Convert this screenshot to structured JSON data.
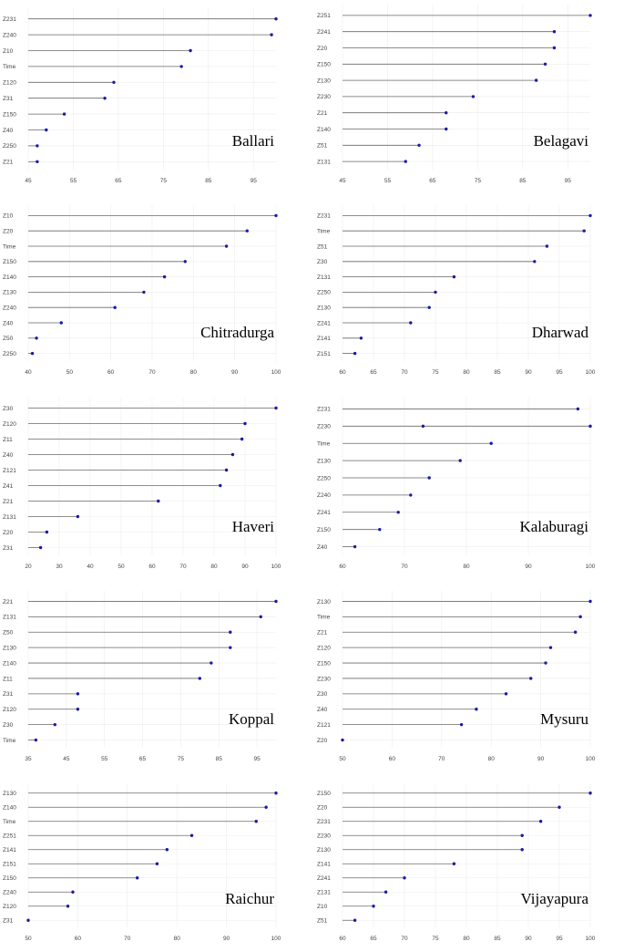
{
  "chart_data": [
    {
      "type": "lollipop",
      "title": "Ballari",
      "categories": [
        "Z231",
        "Z240",
        "Z10",
        "Time",
        "Z120",
        "Z31",
        "Z150",
        "Z40",
        "Z250",
        "Z21"
      ],
      "values": [
        100,
        99,
        81,
        79,
        64,
        62,
        53,
        49,
        47,
        47
      ],
      "xlim": [
        45,
        100
      ],
      "xticks": [
        45,
        55,
        65,
        75,
        85,
        95
      ]
    },
    {
      "type": "lollipop",
      "title": "Belagavi",
      "categories": [
        "Z251",
        "Z241",
        "Z20",
        "Z150",
        "Z130",
        "Z230",
        "Z21",
        "Z140",
        "Z51",
        "Z131"
      ],
      "values": [
        100,
        92,
        92,
        90,
        88,
        74,
        68,
        68,
        62,
        59
      ],
      "xlim": [
        45,
        100
      ],
      "xticks": [
        45,
        55,
        65,
        75,
        85,
        95
      ]
    },
    {
      "type": "lollipop",
      "title": "Chitradurga",
      "categories": [
        "Z10",
        "Z20",
        "Time",
        "Z150",
        "Z140",
        "Z130",
        "Z240",
        "Z40",
        "Z50",
        "Z250"
      ],
      "values": [
        100,
        93,
        88,
        78,
        73,
        68,
        61,
        48,
        42,
        41
      ],
      "xlim": [
        40,
        100
      ],
      "xticks": [
        40,
        50,
        60,
        70,
        80,
        90,
        100
      ]
    },
    {
      "type": "lollipop",
      "title": "Dharwad",
      "categories": [
        "Z231",
        "Time",
        "Z51",
        "Z30",
        "Z131",
        "Z250",
        "Z130",
        "Z241",
        "Z141",
        "Z151"
      ],
      "values": [
        100,
        99,
        93,
        91,
        78,
        75,
        74,
        71,
        63,
        62
      ],
      "xlim": [
        60,
        100
      ],
      "xticks": [
        60,
        65,
        70,
        75,
        80,
        85,
        90,
        95,
        100
      ]
    },
    {
      "type": "lollipop",
      "title": "Haveri",
      "categories": [
        "Z30",
        "Z120",
        "Z11",
        "Z40",
        "Z121",
        "Z41",
        "Z21",
        "Z131",
        "Z20",
        "Z31"
      ],
      "values": [
        100,
        90,
        89,
        86,
        84,
        82,
        62,
        36,
        26,
        24
      ],
      "xlim": [
        20,
        100
      ],
      "xticks": [
        20,
        30,
        40,
        50,
        60,
        70,
        80,
        90,
        100
      ]
    },
    {
      "type": "lollipop",
      "title": "Kalaburagi",
      "categories": [
        "Z231",
        "Z230",
        "Time",
        "Z130",
        "Z250",
        "Z240",
        "Z241",
        "Z150",
        "Z40"
      ],
      "values": [
        98,
        100,
        84,
        79,
        74,
        71,
        69,
        66,
        62
      ],
      "secondary_points": [
        null,
        73,
        null,
        null,
        null,
        null,
        null,
        null,
        null
      ],
      "xlim": [
        60,
        100
      ],
      "xticks": [
        60,
        70,
        80,
        90,
        100
      ]
    },
    {
      "type": "lollipop",
      "title": "Koppal",
      "categories": [
        "Z21",
        "Z131",
        "Z50",
        "Z130",
        "Z140",
        "Z11",
        "Z31",
        "Z120",
        "Z30",
        "Time"
      ],
      "values": [
        100,
        96,
        88,
        88,
        83,
        80,
        48,
        48,
        42,
        37
      ],
      "xlim": [
        35,
        100
      ],
      "xticks": [
        35,
        45,
        55,
        65,
        75,
        85,
        95
      ]
    },
    {
      "type": "lollipop",
      "title": "Mysuru",
      "categories": [
        "Z130",
        "Time",
        "Z21",
        "Z120",
        "Z150",
        "Z230",
        "Z30",
        "Z40",
        "Z121",
        "Z20"
      ],
      "values": [
        100,
        98,
        97,
        92,
        91,
        88,
        83,
        77,
        74,
        50
      ],
      "xlim": [
        50,
        100
      ],
      "xticks": [
        50,
        60,
        70,
        80,
        90,
        100
      ]
    },
    {
      "type": "lollipop",
      "title": "Raichur",
      "categories": [
        "Z130",
        "Z140",
        "Time",
        "Z251",
        "Z141",
        "Z151",
        "Z150",
        "Z240",
        "Z120",
        "Z31"
      ],
      "values": [
        100,
        98,
        96,
        83,
        78,
        76,
        72,
        59,
        58,
        50
      ],
      "xlim": [
        50,
        100
      ],
      "xticks": [
        50,
        60,
        70,
        80,
        90,
        100
      ]
    },
    {
      "type": "lollipop",
      "title": "Vijayapura",
      "categories": [
        "Z150",
        "Z20",
        "Z231",
        "Z230",
        "Z130",
        "Z141",
        "Z241",
        "Z131",
        "Z10",
        "Z51"
      ],
      "values": [
        100,
        95,
        92,
        89,
        89,
        78,
        70,
        67,
        65,
        62
      ],
      "xlim": [
        60,
        100
      ],
      "xticks": [
        60,
        65,
        70,
        75,
        80,
        85,
        90,
        95,
        100
      ]
    }
  ]
}
